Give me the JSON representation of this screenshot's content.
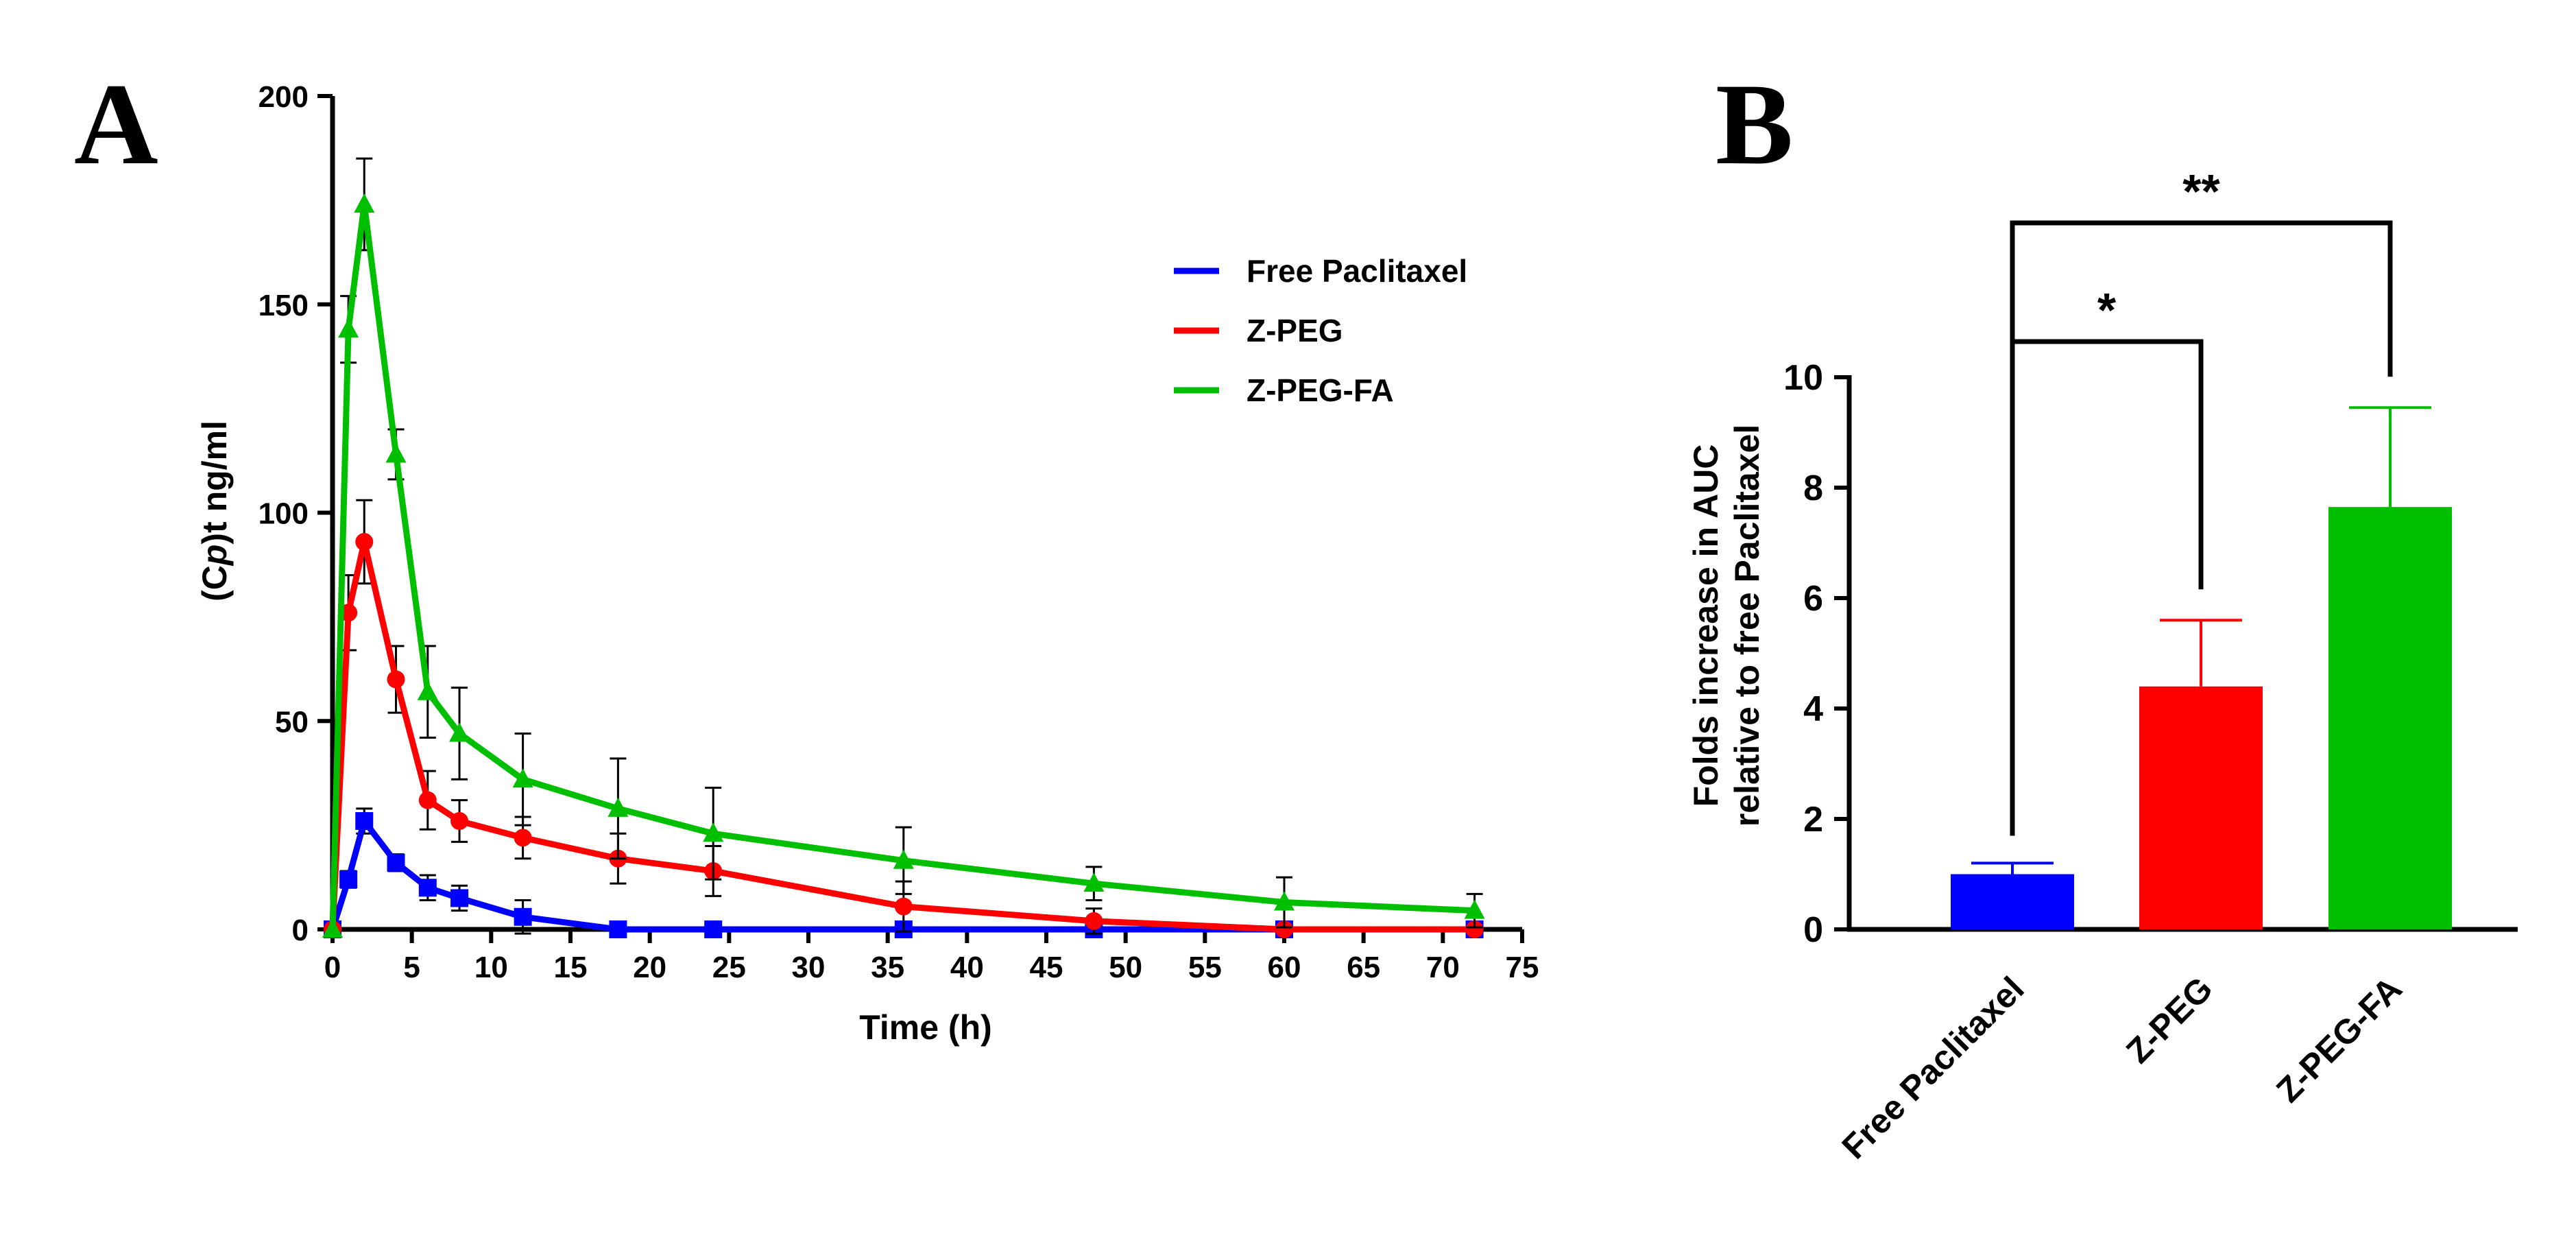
{
  "panels": {
    "a_letter": "A",
    "b_letter": "B"
  },
  "chart_data": [
    {
      "type": "line",
      "panel": "A",
      "xlabel": "Time (h)",
      "ylabel": "(Cp)t ng/ml",
      "ylabel_parts": {
        "pre": "(C",
        "italic": "p",
        "post": ")t ng/ml"
      },
      "xlim": [
        0,
        75
      ],
      "ylim": [
        0,
        200
      ],
      "xticks": [
        0,
        5,
        10,
        15,
        20,
        25,
        30,
        35,
        40,
        45,
        50,
        55,
        60,
        65,
        70,
        75
      ],
      "yticks": [
        0,
        50,
        100,
        150,
        200
      ],
      "grid": false,
      "legend_position": "top-right",
      "series": [
        {
          "name": "Free Paclitaxel",
          "color": "#0000ff",
          "marker": "square",
          "x": [
            0,
            1,
            2,
            4,
            6,
            8,
            12,
            18,
            24,
            36,
            48,
            60,
            72
          ],
          "y": [
            0,
            12,
            26,
            16,
            10,
            7.5,
            3,
            0,
            0,
            0,
            0,
            0,
            0
          ],
          "err": [
            0,
            2,
            3,
            2,
            3,
            3,
            4,
            0,
            0,
            0,
            0,
            0,
            0
          ]
        },
        {
          "name": "Z-PEG",
          "color": "#ff0000",
          "marker": "circle",
          "x": [
            0,
            1,
            2,
            4,
            6,
            8,
            12,
            18,
            24,
            36,
            48,
            60,
            72
          ],
          "y": [
            0,
            76,
            93,
            60,
            31,
            26,
            22,
            17,
            14,
            5.5,
            2,
            0,
            0
          ],
          "err": [
            0,
            9,
            10,
            8,
            7,
            5,
            5,
            6,
            6,
            6,
            3,
            0,
            0
          ]
        },
        {
          "name": "Z-PEG-FA",
          "color": "#00bf00",
          "marker": "triangle",
          "x": [
            0,
            1,
            2,
            4,
            6,
            8,
            12,
            18,
            24,
            36,
            48,
            60,
            72
          ],
          "y": [
            0,
            144,
            174,
            114,
            57,
            47,
            36,
            29,
            23,
            16.5,
            11,
            6.5,
            4.5
          ],
          "err": [
            0,
            8,
            11,
            6,
            11,
            11,
            11,
            12,
            11,
            8,
            4,
            6,
            4
          ]
        }
      ]
    },
    {
      "type": "bar",
      "panel": "B",
      "categories": [
        "Free Paclitaxel",
        "Z-PEG",
        "Z-PEG-FA"
      ],
      "values": [
        1.0,
        4.4,
        7.65
      ],
      "errors": [
        0.2,
        1.2,
        1.8
      ],
      "colors": [
        "#0000ff",
        "#ff0000",
        "#00bf00"
      ],
      "ylabel_lines": [
        "Folds increase in AUC",
        "relative to free Paclitaxel"
      ],
      "ylim": [
        0,
        10
      ],
      "yticks": [
        0,
        2,
        4,
        6,
        8,
        10
      ],
      "grid": false,
      "significance": [
        {
          "from": 0,
          "to": 1,
          "label": "*"
        },
        {
          "from": 0,
          "to": 2,
          "label": "**"
        }
      ]
    }
  ]
}
